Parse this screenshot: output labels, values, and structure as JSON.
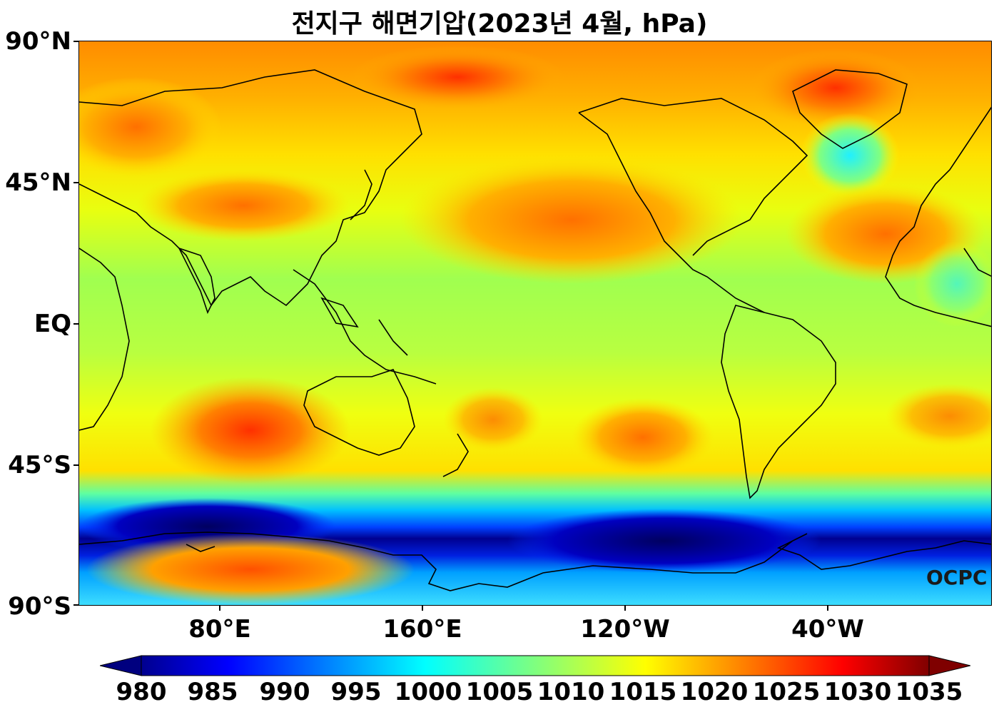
{
  "title": "전지구 해면기압(2023년 4월, hPa)",
  "lat_labels": [
    "90°N",
    "45°N",
    "EQ",
    "45°S",
    "90°S"
  ],
  "lon_labels": [
    "80°E",
    "160°E",
    "120°W",
    "40°W"
  ],
  "colorbar": {
    "labels": [
      "980",
      "985",
      "990",
      "995",
      "1000",
      "1005",
      "1010",
      "1015",
      "1020",
      "1025",
      "1030",
      "1035"
    ],
    "colormap": "jet",
    "extend": "both"
  },
  "watermark": "OCPC",
  "colors": {
    "very_low": "#000080",
    "low": "#0000ff",
    "mid_low": "#00ffff",
    "mid": "#7fff7f",
    "mid_high": "#ffff00",
    "high": "#ff7f00",
    "very_high": "#ff0000"
  }
}
